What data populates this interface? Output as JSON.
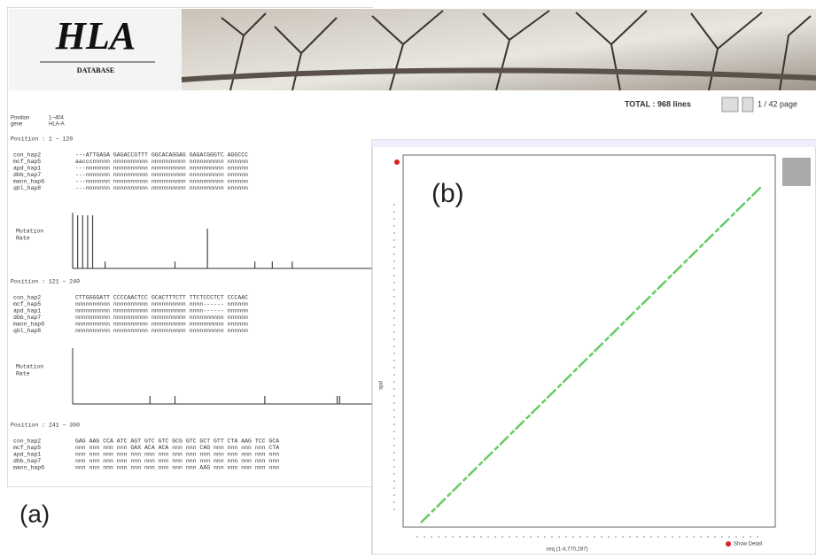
{
  "header": {
    "logo_title": "HLA",
    "logo_subtitle": "DATABASE",
    "total": "TOTAL : 968 lines",
    "page": "1 / 42 page"
  },
  "info": [
    {
      "label": "Position",
      "value": "1~404"
    },
    {
      "label": "gene",
      "value": "HLA-A"
    }
  ],
  "sections": [
    {
      "title": "Position : 1 ~ 120",
      "rows": [
        {
          "name": "con_hap2",
          "seq": "---ATTGAGA GAGACCGTTT GGCACAGGAG GAGACGGGTC AGGCCC"
        },
        {
          "name": "mcf_hap5",
          "seq": "aacccnnnnn nnnnnnnnnn nnnnnnnnnn nnnnnnnnnn nnnnnn"
        },
        {
          "name": "apd_hap1",
          "seq": "---nnnnnnn nnnnnnnnnn nnnnnnnnnn nnnnnnnnnn nnnnnn"
        },
        {
          "name": "dbb_hap7",
          "seq": "---nnnnnnn nnnnnnnnnn nnnnnnnnnn nnnnnnnnnn nnnnnn"
        },
        {
          "name": "mann_hap6",
          "seq": "---nnnnnnn nnnnnnnnnn nnnnnnnnnn nnnnnnnnnn nnnnnn"
        },
        {
          "name": "qbl_hap8",
          "seq": "---nnnnnnn nnnnnnnnnn nnnnnnnnnn nnnnnnnnnn nnnnnn"
        }
      ],
      "mutation_label": [
        "Mutation",
        "Rate"
      ],
      "mutations": {
        "positions": [
          1,
          3,
          5,
          7,
          9,
          14,
          42,
          55,
          74,
          81,
          89
        ],
        "rates": [
          1,
          1,
          1,
          1,
          1,
          0.13,
          0.13,
          0.75,
          0.13,
          0.13,
          0.13
        ]
      }
    },
    {
      "title": "Position : 121 ~ 240",
      "rows": [
        {
          "name": "con_hap2",
          "seq": "CTTGGGGATT CCCCAACTCC GCACTTTCTT TTCTCCCTCT CCCAAC"
        },
        {
          "name": "mcf_hap5",
          "seq": "nnnnnnnnnn nnnnnnnnnn nnnnnnnnnn nnnn------ nnnnnn"
        },
        {
          "name": "apd_hap1",
          "seq": "nnnnnnnnnn nnnnnnnnnn nnnnnnnnnn nnnn------ nnnnnn"
        },
        {
          "name": "dbb_hap7",
          "seq": "nnnnnnnnnn nnnnnnnnnn nnnnnnnnnn nnnnnnnnnn nnnnnn"
        },
        {
          "name": "mann_hap6",
          "seq": "nnnnnnnnnn nnnnnnnnnn nnnnnnnnnn nnnnnnnnnn nnnnnn"
        },
        {
          "name": "qbl_hap8",
          "seq": "nnnnnnnnnn nnnnnnnnnn nnnnnnnnnn nnnnnnnnnn nnnnnn"
        }
      ],
      "mutation_label": [
        "Mutation",
        "Rate"
      ],
      "mutations": {
        "positions": [
          152,
          162,
          198,
          227,
          228
        ],
        "rates": [
          0.15,
          0.15,
          0.15,
          0.15,
          0.15
        ]
      }
    },
    {
      "title": "Position : 241 ~ 360",
      "rows": [
        {
          "name": "con_hap2",
          "seq": "GAG AAG CCA ATC AGT GTC GTC GCG GTC GCT GTT CTA AAG TCC GCA"
        },
        {
          "name": "mcf_hap5",
          "seq": "nnn nnn nnn nnn GAX ACA ACA nnn nnn CAG nnn nnn nnn nnn CTA"
        },
        {
          "name": "apd_hap1",
          "seq": "nnn nnn nnn nnn nnn nnn nnn nnn nnn nnn nnn nnn nnn nnn nnn"
        },
        {
          "name": "dbb_hap7",
          "seq": "nnn nnn nnn nnn nnn nnn nnn nnn nnn nnn nnn nnn nnn nnn nnn"
        },
        {
          "name": "mann_hap6",
          "seq": "nnn nnn nnn nnn nnn nnn nnn nnn nnn AAG nnn nnn nnn nnn nnn"
        }
      ]
    }
  ],
  "panel_labels": {
    "a": "(a)",
    "b": "(b)"
  },
  "dotplot": {
    "corner_label": "Show Detail",
    "x_label": "seq (1-4,770,287)",
    "y_label": "apd"
  }
}
